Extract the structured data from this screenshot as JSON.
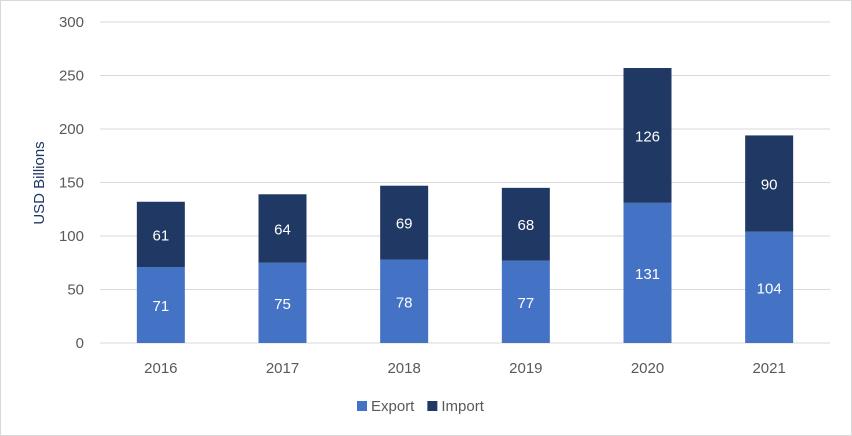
{
  "chart_data": {
    "type": "bar",
    "stacked": true,
    "title": "",
    "xlabel": "",
    "ylabel": "USD Billions",
    "ylim": [
      0,
      300
    ],
    "yticks": [
      0,
      50,
      100,
      150,
      200,
      250,
      300
    ],
    "grid": true,
    "legend_position": "bottom",
    "categories": [
      "2016",
      "2017",
      "2018",
      "2019",
      "2020",
      "2021"
    ],
    "series": [
      {
        "name": "Export",
        "color": "#4472C4",
        "values": [
          71,
          75,
          78,
          77,
          131,
          104
        ]
      },
      {
        "name": "Import",
        "color": "#1F3864",
        "values": [
          61,
          64,
          69,
          68,
          126,
          90
        ]
      }
    ]
  }
}
